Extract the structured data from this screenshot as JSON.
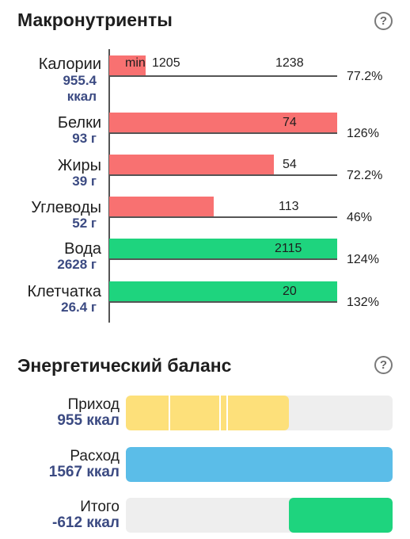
{
  "macros": {
    "title": "Макронутриенты",
    "help": "?",
    "rows": [
      {
        "name": "Калории",
        "value": "955.4",
        "unit": "ккал",
        "norm_min_label": "min",
        "norm_min": "1205",
        "norm": "1238",
        "percent": "77.2%",
        "fraction": 0.772,
        "color": "#f87171"
      },
      {
        "name": "Белки",
        "value": "93 г",
        "norm": "74",
        "percent": "126%",
        "fraction": 1.26,
        "color": "#f87171"
      },
      {
        "name": "Жиры",
        "value": "39 г",
        "norm": "54",
        "percent": "72.2%",
        "fraction": 0.722,
        "color": "#f87171"
      },
      {
        "name": "Углеводы",
        "value": "52 г",
        "norm": "113",
        "percent": "46%",
        "fraction": 0.46,
        "color": "#f87171"
      },
      {
        "name": "Вода",
        "value": "2628 г",
        "norm": "2115",
        "percent": "124%",
        "fraction": 1.24,
        "color": "#1ed47e"
      },
      {
        "name": "Клетчатка",
        "value": "26.4 г",
        "norm": "20",
        "percent": "132%",
        "fraction": 1.32,
        "color": "#1ed47e"
      }
    ]
  },
  "balance": {
    "title": "Энергетический баланс",
    "help": "?",
    "rows": [
      {
        "name": "Приход",
        "value": "955 ккал",
        "fraction": 0.61,
        "color": "#fde07a"
      },
      {
        "name": "Расход",
        "value": "1567 ккал",
        "fraction": 1.0,
        "color": "#5bbde8"
      },
      {
        "name": "Итого",
        "value": "-612 ккал",
        "fraction": 0.39,
        "color": "#1ed47e"
      }
    ]
  }
}
